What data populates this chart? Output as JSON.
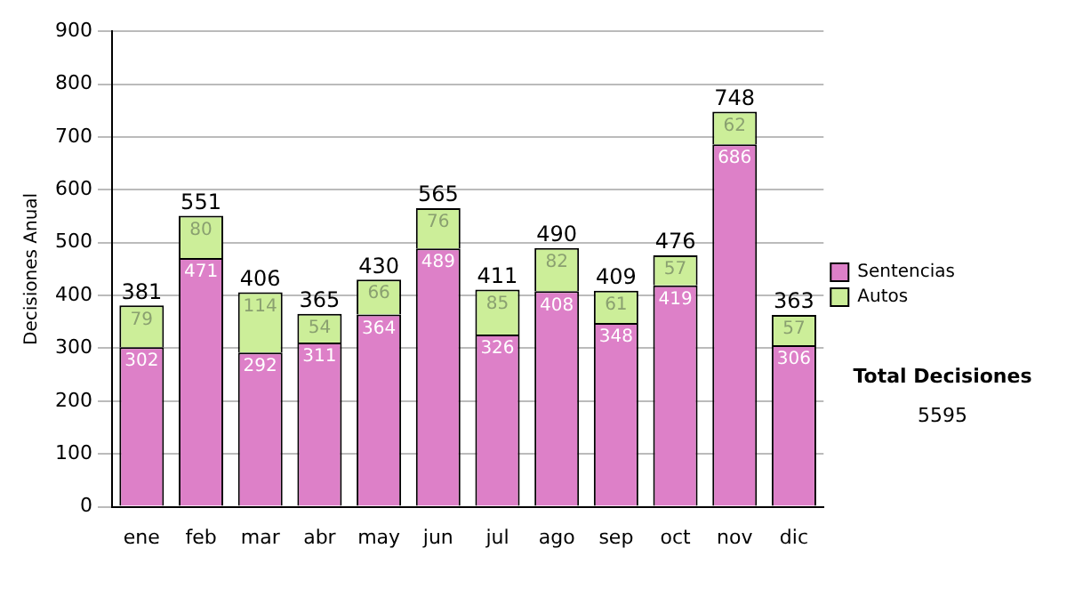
{
  "chart_data": {
    "type": "bar",
    "stacked": true,
    "ylabel": "Decisiones Anual",
    "categories": [
      "ene",
      "feb",
      "mar",
      "abr",
      "may",
      "jun",
      "jul",
      "ago",
      "sep",
      "oct",
      "nov",
      "dic"
    ],
    "series": [
      {
        "name": "Sentencias",
        "color": "#dd80c8",
        "values": [
          302,
          471,
          292,
          311,
          364,
          489,
          326,
          408,
          348,
          419,
          686,
          306
        ]
      },
      {
        "name": "Autos",
        "color": "#ccee99",
        "values": [
          79,
          80,
          114,
          54,
          66,
          76,
          85,
          82,
          61,
          57,
          62,
          57
        ]
      }
    ],
    "totals": [
      "381",
      "551",
      "406",
      "365",
      "430",
      "565",
      "411",
      "490",
      "409",
      "476",
      "748",
      "363"
    ],
    "data_labels": true,
    "ylim": [
      0,
      900
    ],
    "yticks": [
      0,
      100,
      200,
      300,
      400,
      500,
      600,
      700,
      800,
      900
    ],
    "grid": "y",
    "legend": "right",
    "annotations": [
      "Total Decisiones",
      "5595"
    ]
  }
}
